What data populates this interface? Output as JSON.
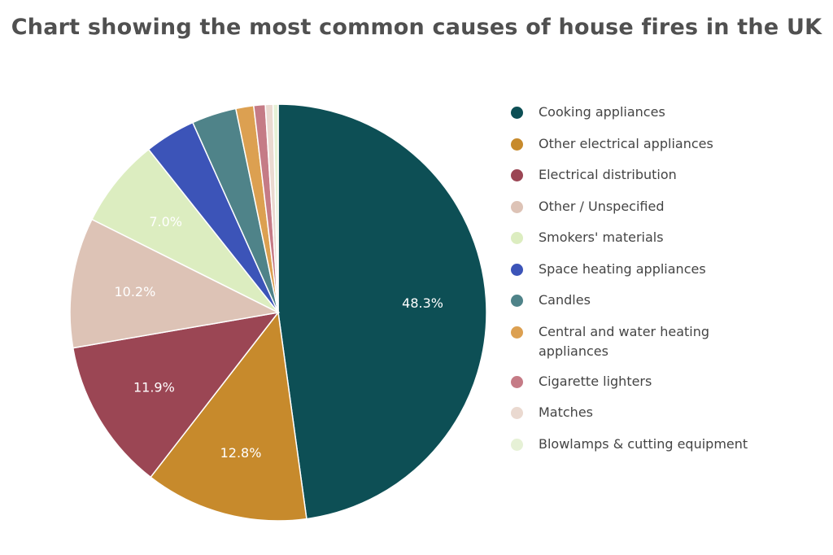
{
  "chart_data": {
    "type": "pie",
    "title": "Chart showing the most common causes of house fires in the UK",
    "slices": [
      {
        "label": "Cooking appliances",
        "value": 48.3,
        "value_label": "48.3%",
        "color": "#0d4f55"
      },
      {
        "label": "Other electrical appliances",
        "value": 12.8,
        "value_label": "12.8%",
        "color": "#c78a2c"
      },
      {
        "label": "Electrical distribution",
        "value": 11.9,
        "value_label": "11.9%",
        "color": "#9b4654"
      },
      {
        "label": "Other / Unspecified",
        "value": 10.2,
        "value_label": "10.2%",
        "color": "#ddc3b6"
      },
      {
        "label": "Smokers' materials",
        "value": 7.0,
        "value_label": "7.0%",
        "color": "#dcedc0"
      },
      {
        "label": "Space heating appliances",
        "value": 4.0,
        "value_label": "",
        "color": "#3c54b8"
      },
      {
        "label": "Candles",
        "value": 3.5,
        "value_label": "",
        "color": "#4f8389"
      },
      {
        "label": "Central and water heating appliances",
        "value": 1.4,
        "value_label": "",
        "color": "#dca051"
      },
      {
        "label": "Cigarette lighters",
        "value": 0.9,
        "value_label": "",
        "color": "#c57b86"
      },
      {
        "label": "Matches",
        "value": 0.6,
        "value_label": "",
        "color": "#ead9d0"
      },
      {
        "label": "Blowlamps & cutting equipment",
        "value": 0.4,
        "value_label": "",
        "color": "#e6f1d6"
      }
    ],
    "legend_position": "right",
    "start_angle_deg": 0,
    "direction": "clockwise"
  }
}
